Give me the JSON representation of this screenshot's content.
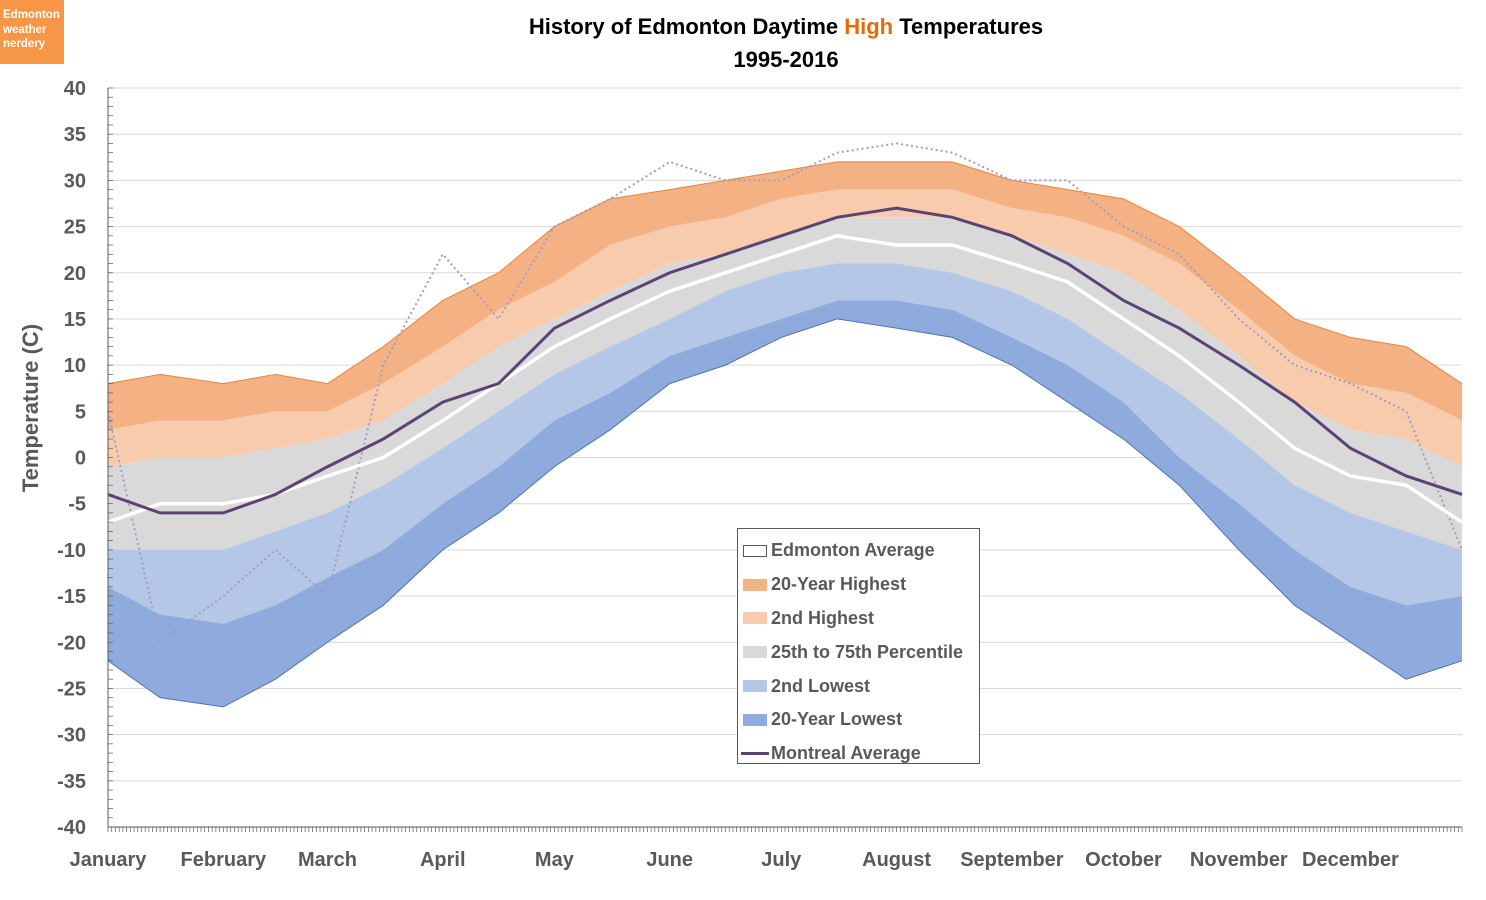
{
  "logo": {
    "text": [
      "Edmonton",
      "weather",
      "nerdery"
    ]
  },
  "title": {
    "part1": "History of Edmonton Daytime ",
    "highlight": "High",
    "part2": " Temperatures",
    "line2": "1995-2016"
  },
  "colors": {
    "max": "#f4b183",
    "second_high": "#f8cbad",
    "iqr": "#d9d9d9",
    "second_low": "#b4c7e7",
    "min": "#8faadc",
    "edmonton_avg": "#ffffff",
    "montreal": "#5b4374",
    "dotted": "#a19dc2",
    "highlight": "#e36c09"
  },
  "chart_data": {
    "type": "area",
    "title": "History of Edmonton Daytime High Temperatures 1995-2016",
    "ylabel": "Temperature (C)",
    "ylim": [
      -40,
      40
    ],
    "yticks": [
      40,
      35,
      30,
      25,
      20,
      15,
      10,
      5,
      0,
      -5,
      -10,
      -15,
      -20,
      -25,
      -30,
      -35,
      -40
    ],
    "month_labels": [
      "January",
      "February",
      "March",
      "April",
      "May",
      "June",
      "July",
      "August",
      "September",
      "October",
      "November",
      "December"
    ],
    "grid": true,
    "legend_position": "center-bottom",
    "x_day_of_year": [
      1,
      15,
      32,
      46,
      60,
      75,
      91,
      106,
      121,
      136,
      152,
      167,
      182,
      197,
      213,
      228,
      244,
      259,
      274,
      289,
      305,
      320,
      335,
      350,
      365
    ],
    "series": [
      {
        "name": "20-Year Highest",
        "values": [
          8,
          9,
          8,
          9,
          8,
          12,
          17,
          20,
          25,
          28,
          29,
          30,
          31,
          32,
          32,
          32,
          30,
          29,
          28,
          25,
          20,
          15,
          13,
          12,
          8
        ]
      },
      {
        "name": "2nd Highest",
        "values": [
          3,
          4,
          4,
          5,
          5,
          8,
          12,
          16,
          19,
          23,
          25,
          26,
          28,
          29,
          29,
          29,
          27,
          26,
          24,
          21,
          16,
          11,
          8,
          7,
          4
        ]
      },
      {
        "name": "25th to 75th Percentile",
        "upper": [
          -1,
          0,
          0,
          1,
          2,
          4,
          8,
          12,
          15,
          18,
          21,
          22,
          24,
          26,
          26,
          26,
          24,
          22,
          20,
          16,
          11,
          6,
          3,
          2,
          -1
        ],
        "lower": [
          -10,
          -10,
          -10,
          -8,
          -6,
          -3,
          1,
          5,
          9,
          12,
          15,
          18,
          20,
          21,
          21,
          20,
          18,
          15,
          11,
          7,
          2,
          -3,
          -6,
          -8,
          -10
        ]
      },
      {
        "name": "Edmonton Average",
        "values": [
          -7,
          -5,
          -5,
          -4,
          -2,
          0,
          4,
          8,
          12,
          15,
          18,
          20,
          22,
          24,
          23,
          23,
          21,
          19,
          15,
          11,
          6,
          1,
          -2,
          -3,
          -7
        ]
      },
      {
        "name": "2nd Lowest",
        "values": [
          -14,
          -17,
          -18,
          -16,
          -13,
          -10,
          -5,
          -1,
          4,
          7,
          11,
          13,
          15,
          17,
          17,
          16,
          13,
          10,
          6,
          0,
          -5,
          -10,
          -14,
          -16,
          -15
        ]
      },
      {
        "name": "20-Year Lowest",
        "values": [
          -22,
          -26,
          -27,
          -24,
          -20,
          -16,
          -10,
          -6,
          -1,
          3,
          8,
          10,
          13,
          15,
          14,
          13,
          10,
          6,
          2,
          -3,
          -10,
          -16,
          -20,
          -24,
          -22
        ]
      },
      {
        "name": "Montreal Average",
        "values": [
          -4,
          -6,
          -6,
          -4,
          -1,
          2,
          6,
          8,
          14,
          17,
          20,
          22,
          24,
          26,
          27,
          26,
          24,
          21,
          17,
          14,
          10,
          6,
          1,
          -2,
          -4
        ]
      },
      {
        "values": [
          5,
          -20,
          -15,
          -10,
          -15,
          10,
          22,
          15,
          25,
          28,
          32,
          30,
          30,
          33,
          34,
          33,
          30,
          30,
          25,
          22,
          15,
          10,
          8,
          5,
          -10
        ]
      }
    ]
  }
}
